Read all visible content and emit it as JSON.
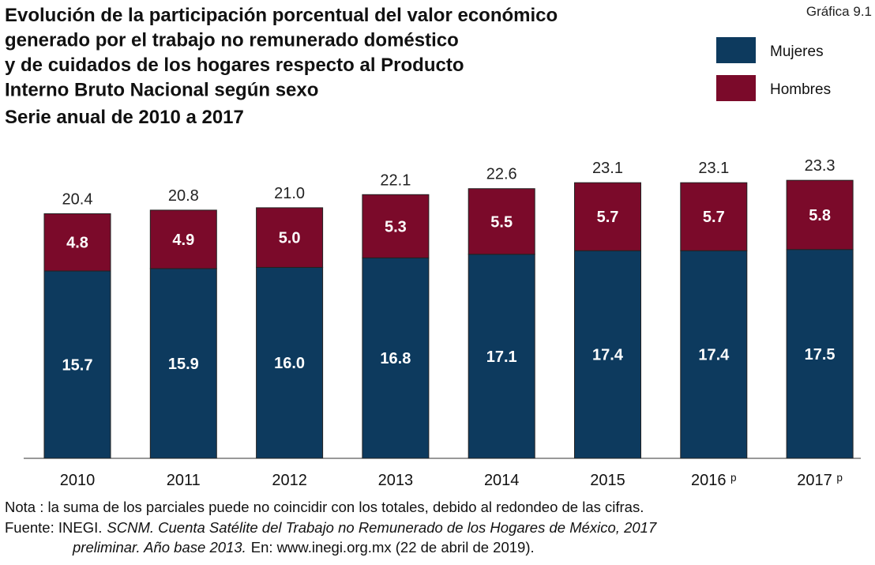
{
  "chart_data": {
    "type": "stacked_bar",
    "title_lines": [
      "Evolución de la participación porcentual del valor económico",
      "generado por el trabajo no remunerado doméstico",
      "y de cuidados de los hogares respecto al Producto",
      "Interno Bruto Nacional según sexo",
      "Serie anual de 2010 a 2017"
    ],
    "figure_label": "Gráfica 9.1",
    "categories": [
      "2010",
      "2011",
      "2012",
      "2013",
      "2014",
      "2015",
      "2016 ᵖ",
      "2017 ᵖ"
    ],
    "series": [
      {
        "name": "Mujeres",
        "color": "#0d3a5e",
        "values": [
          15.7,
          15.9,
          16.0,
          16.8,
          17.1,
          17.4,
          17.4,
          17.5
        ],
        "value_labels": [
          "15.7",
          "15.9",
          "16.0",
          "16.8",
          "17.1",
          "17.4",
          "17.4",
          "17.5"
        ]
      },
      {
        "name": "Hombres",
        "color": "#7b0a2a",
        "values": [
          4.8,
          4.9,
          5.0,
          5.3,
          5.5,
          5.7,
          5.7,
          5.8
        ],
        "value_labels": [
          "4.8",
          "4.9",
          "5.0",
          "5.3",
          "5.5",
          "5.7",
          "5.7",
          "5.8"
        ]
      }
    ],
    "totals": [
      20.4,
      20.8,
      21.0,
      22.1,
      22.6,
      23.1,
      23.1,
      23.3
    ],
    "total_labels": [
      "20.4",
      "20.8",
      "21.0",
      "22.1",
      "22.6",
      "23.1",
      "23.1",
      "23.3"
    ],
    "note": "Nota : la suma de los parciales puede no coincidir con los totales, debido al redondeo de las cifras.",
    "source_lines": [
      [
        {
          "text": "Fuente: INEGI.",
          "italic": false
        },
        {
          "text": "SCNM. Cuenta Satélite del Trabajo no Remunerado de los Hogares de México, 2017",
          "italic": true
        }
      ],
      [
        {
          "text": "preliminar. Año base 2013.",
          "italic": true
        },
        {
          "text": "En: www.inegi.org.mx (22 de abril de 2019).",
          "italic": false
        }
      ]
    ]
  }
}
